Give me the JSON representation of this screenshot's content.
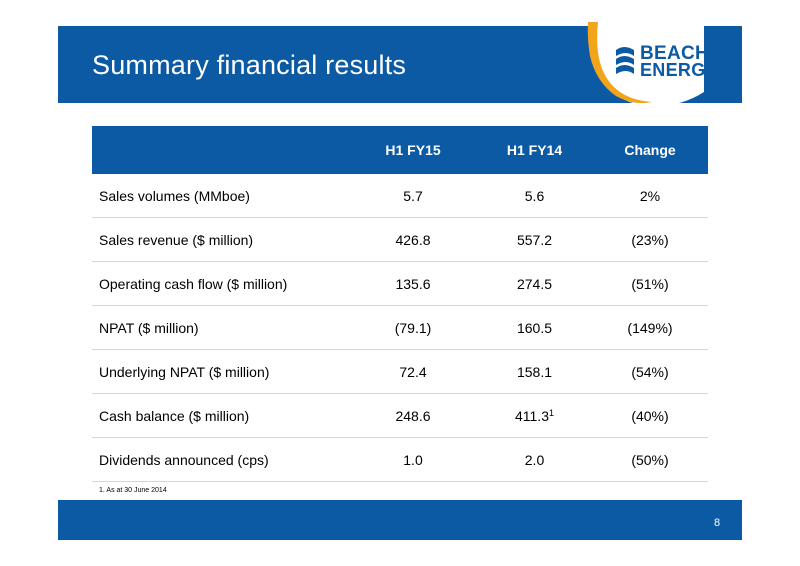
{
  "header": {
    "title": "Summary financial results"
  },
  "logo": {
    "line1": "BEACH",
    "line2": "ENERGY"
  },
  "table": {
    "columns": [
      "",
      "H1 FY15",
      "H1 FY14",
      "Change"
    ],
    "rows": [
      {
        "metric": "Sales volumes (MMboe)",
        "fy15": "5.7",
        "fy14": "5.6",
        "change": "2%"
      },
      {
        "metric": "Sales revenue ($ million)",
        "fy15": "426.8",
        "fy14": "557.2",
        "change": "(23%)"
      },
      {
        "metric": "Operating cash flow ($ million)",
        "fy15": "135.6",
        "fy14": "274.5",
        "change": "(51%)"
      },
      {
        "metric": "NPAT ($ million)",
        "fy15": "(79.1)",
        "fy14": "160.5",
        "change": "(149%)"
      },
      {
        "metric": "Underlying NPAT ($ million)",
        "fy15": "72.4",
        "fy14": "158.1",
        "change": "(54%)"
      },
      {
        "metric": "Cash balance ($ million)",
        "fy15": "248.6",
        "fy14": "411.3",
        "fy14_note": "1",
        "change": "(40%)"
      },
      {
        "metric": "Dividends announced (cps)",
        "fy15": "1.0",
        "fy14": "2.0",
        "change": "(50%)"
      }
    ]
  },
  "footnote": "1. As at 30 June 2014",
  "footer": {
    "page_number": "8"
  },
  "colors": {
    "brand_blue": "#0b5aa3",
    "logo_orange": "#f2a51a"
  }
}
